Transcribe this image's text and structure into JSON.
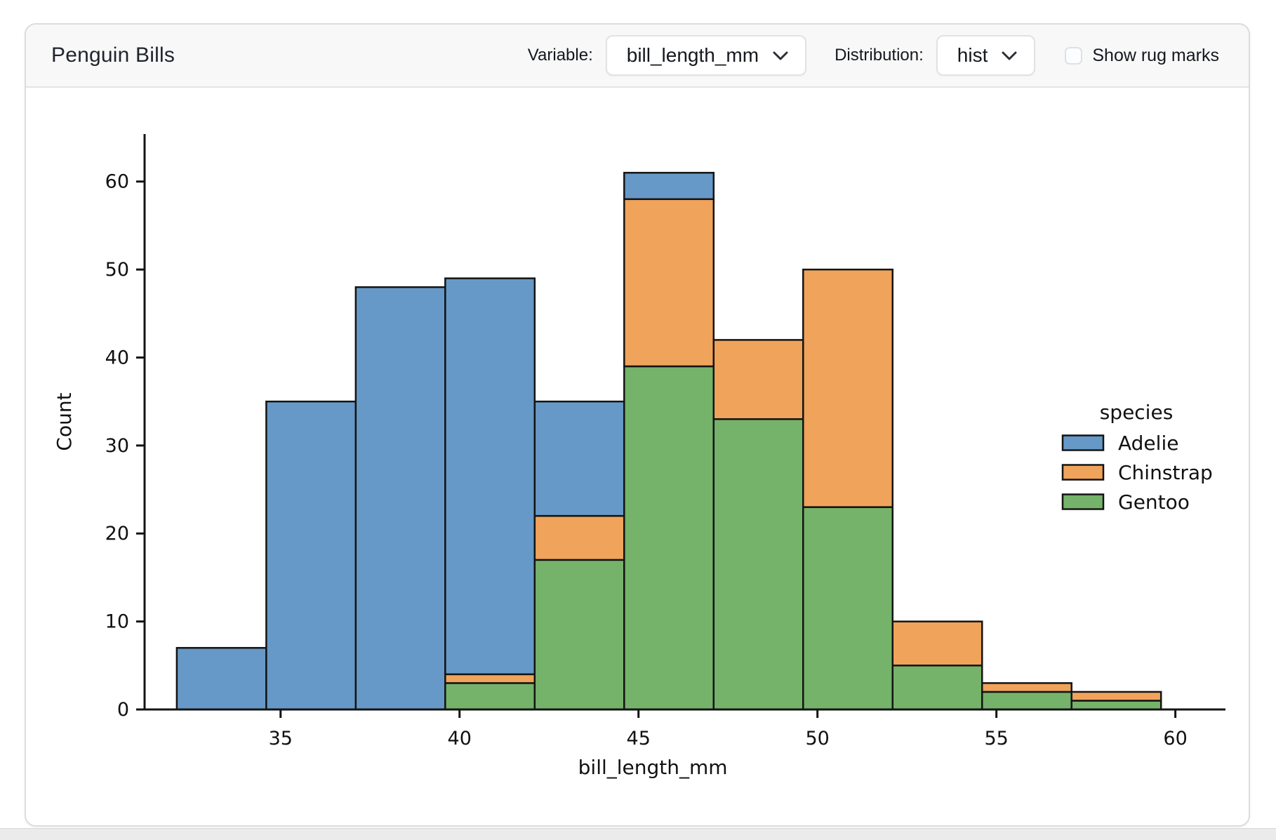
{
  "header": {
    "title": "Penguin Bills",
    "variable_label": "Variable:",
    "variable_value": "bill_length_mm",
    "distribution_label": "Distribution:",
    "distribution_value": "hist",
    "rug_checkbox": {
      "label": "Show rug marks",
      "checked": false
    }
  },
  "chart_data": {
    "type": "bar",
    "subtype": "stacked-histogram",
    "xlabel": "bill_length_mm",
    "ylabel": "Count",
    "bin_edges": [
      32.1,
      34.6,
      37.1,
      39.6,
      42.1,
      44.6,
      47.1,
      49.6,
      52.1,
      54.6,
      57.1,
      59.6
    ],
    "stack_order_bottom_to_top": [
      "Gentoo",
      "Chinstrap",
      "Adelie"
    ],
    "series": [
      {
        "name": "Gentoo",
        "color": "#75b36a",
        "values": [
          0,
          0,
          0,
          3,
          17,
          39,
          33,
          23,
          5,
          2,
          1
        ]
      },
      {
        "name": "Chinstrap",
        "color": "#f0a35a",
        "values": [
          0,
          0,
          0,
          1,
          5,
          19,
          9,
          27,
          5,
          1,
          1
        ]
      },
      {
        "name": "Adelie",
        "color": "#6699c7",
        "values": [
          7,
          35,
          48,
          45,
          13,
          3,
          0,
          0,
          0,
          0,
          0
        ]
      }
    ],
    "bin_totals": [
      7,
      35,
      48,
      49,
      35,
      61,
      42,
      50,
      10,
      3,
      2
    ],
    "x_ticks": [
      35,
      40,
      45,
      50,
      55,
      60
    ],
    "y_ticks": [
      0,
      10,
      20,
      30,
      40,
      50,
      60
    ],
    "xlim": [
      31.2,
      61.4
    ],
    "ylim": [
      0,
      65.4
    ],
    "grid": false,
    "edge_color": "#141414",
    "text_color": "#111111",
    "legend": {
      "title": "species",
      "position": "center-right",
      "entries": [
        {
          "label": "Adelie",
          "color": "#6699c7"
        },
        {
          "label": "Chinstrap",
          "color": "#f0a35a"
        },
        {
          "label": "Gentoo",
          "color": "#75b36a"
        }
      ]
    }
  }
}
